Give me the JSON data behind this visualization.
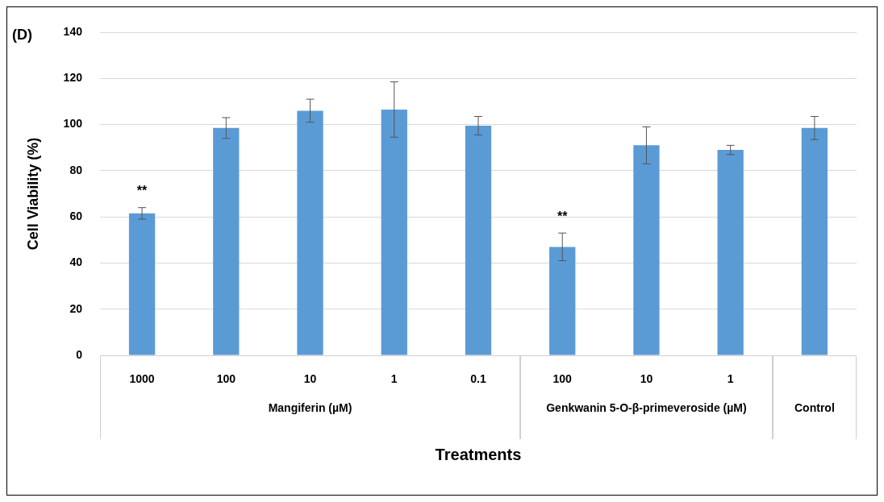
{
  "chart_data": {
    "type": "bar",
    "title": "(D)",
    "xlabel": "Treatments",
    "ylabel": "Cell Viability (%)",
    "categories": [
      "1000",
      "100",
      "10",
      "1",
      "0.1",
      "100",
      "10",
      "1",
      null
    ],
    "values": [
      61.5,
      98.5,
      106,
      106.5,
      99.5,
      47,
      91,
      89,
      98.5
    ],
    "errors": [
      2.5,
      4.5,
      5,
      12,
      4,
      6,
      8,
      2,
      5
    ],
    "color": "#5b9bd5",
    "ylim": [
      0,
      140
    ],
    "yticks": [
      0,
      20,
      40,
      60,
      80,
      100,
      120,
      140
    ],
    "grid": "y",
    "value_labels": [
      "**",
      null,
      null,
      null,
      null,
      "**",
      null,
      null,
      null
    ],
    "annotations": [
      "Mangiferin (µM)",
      "Genkwanin 5-O-β-primeveroside (µM)",
      "Control"
    ]
  }
}
